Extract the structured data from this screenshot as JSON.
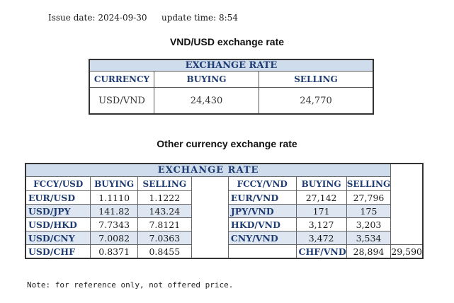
{
  "issue": {
    "label": "Issue date:",
    "date": "2024-09-30"
  },
  "update": {
    "label": "update time:",
    "time": "8:54"
  },
  "vnd_title": "VND/USD exchange rate",
  "t1": {
    "band": "EXCHANGE RATE",
    "headers": [
      "CURRENCY",
      "BUYING",
      "SELLING"
    ],
    "row": [
      "USD/VND",
      "24,430",
      "24,770"
    ]
  },
  "other_title": "Other currency exchange rate",
  "t2": {
    "band": "EXCHANGE RATE",
    "left_headers": [
      "FCCY/USD",
      "BUYING",
      "SELLING"
    ],
    "right_headers": [
      "FCCY/VND",
      "BUYING",
      "SELLING"
    ],
    "left_rows": [
      [
        "EUR/USD",
        "1.1110",
        "1.1222"
      ],
      [
        "USD/JPY",
        "141.82",
        "143.24"
      ],
      [
        "USD/HKD",
        "7.7343",
        "7.8121"
      ],
      [
        "USD/CNY",
        "7.0082",
        "7.0363"
      ],
      [
        "USD/CHF",
        "0.8371",
        "0.8455"
      ]
    ],
    "right_rows": [
      [
        "EUR/VND",
        "27,142",
        "27,796"
      ],
      [
        "JPY/VND",
        "171",
        "175"
      ],
      [
        "HKD/VND",
        "3,127",
        "3,203"
      ],
      [
        "CNY/VND",
        "3,472",
        "3,534"
      ],
      [
        "CHF/VND",
        "28,894",
        "29,590"
      ]
    ]
  },
  "note": "Note: for reference only, not offered price."
}
